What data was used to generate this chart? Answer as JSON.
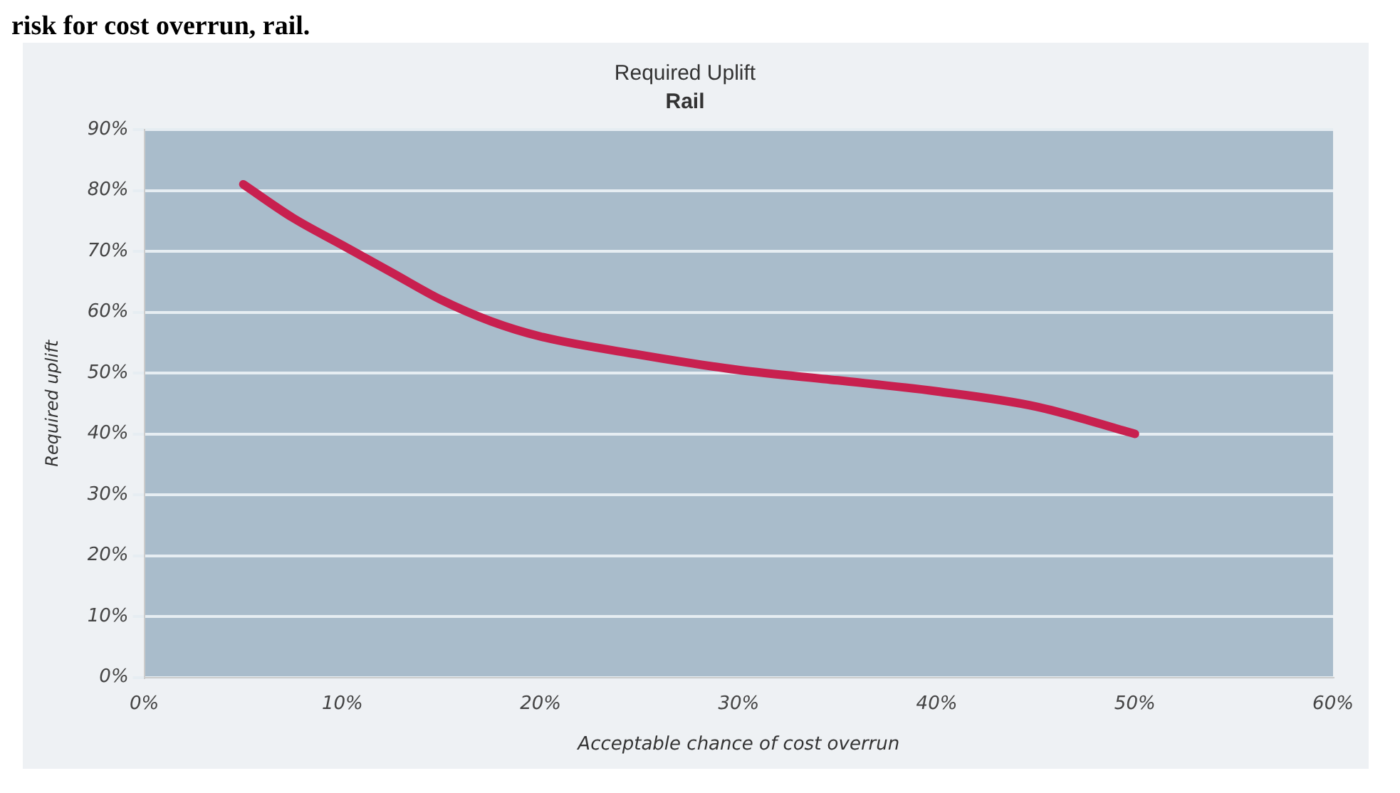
{
  "chart_data": {
    "type": "line",
    "title": "Required Uplift",
    "subtitle": "Rail",
    "xlabel": "Acceptable chance of cost overrun",
    "ylabel": "Required uplift",
    "annotations": [
      "risk for cost overrun, rail."
    ],
    "x": [
      5,
      7.5,
      10,
      12.5,
      15,
      17.5,
      20,
      25,
      30,
      35,
      40,
      45,
      50
    ],
    "series": [
      {
        "color": "#c8204f",
        "values": [
          81,
          75.5,
          71,
          66.5,
          62,
          58.5,
          56,
          53,
          50.5,
          48.8,
          47,
          44.5,
          40
        ]
      }
    ],
    "xlim": [
      0,
      60
    ],
    "xticks": [
      {
        "value": 0,
        "label": "0%"
      },
      {
        "value": 10,
        "label": "10%"
      },
      {
        "value": 20,
        "label": "20%"
      },
      {
        "value": 30,
        "label": "30%"
      },
      {
        "value": 40,
        "label": "40%"
      },
      {
        "value": 50,
        "label": "50%"
      },
      {
        "value": 60,
        "label": "60%"
      }
    ],
    "ylim": [
      0,
      90
    ],
    "yticks": [
      {
        "value": 0,
        "label": "0%"
      },
      {
        "value": 10,
        "label": "10%"
      },
      {
        "value": 20,
        "label": "20%"
      },
      {
        "value": 30,
        "label": "30%"
      },
      {
        "value": 40,
        "label": "40%"
      },
      {
        "value": 50,
        "label": "50%"
      },
      {
        "value": 60,
        "label": "60%"
      },
      {
        "value": 70,
        "label": "70%"
      },
      {
        "value": 80,
        "label": "80%"
      },
      {
        "value": 90,
        "label": "90%"
      }
    ],
    "grid": "y",
    "legend": false,
    "marker": "none",
    "line_style": "solid"
  }
}
